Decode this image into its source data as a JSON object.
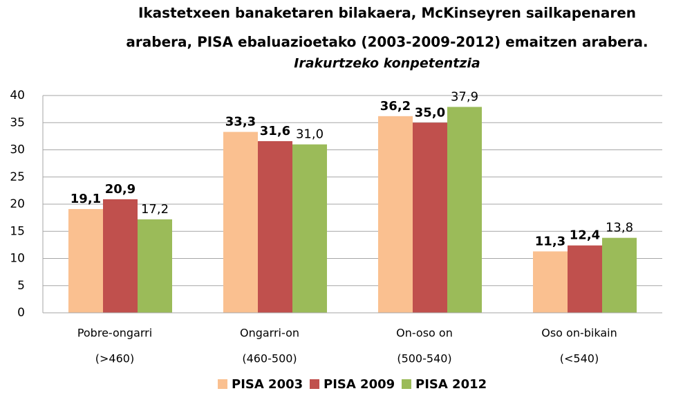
{
  "chart_data": {
    "type": "bar",
    "title": [
      "Ikastetxeen banaketaren bilakaera, McKinseyren sailkapenaren",
      "arabera, PISA ebaluazioetako (2003-2009-2012) emaitzen arabera."
    ],
    "subtitle": "Irakurtzeko konpetentzia",
    "categories": [
      [
        "Pobre-ongarri",
        "(>460)"
      ],
      [
        "Ongarri-on",
        "(460-500)"
      ],
      [
        "On-oso on",
        "(500-540)"
      ],
      [
        "Oso on-bikain",
        "(<540)"
      ]
    ],
    "series": [
      {
        "name": "PISA 2003",
        "color": "#fac090",
        "label_color": "#e46c0a",
        "values": [
          19.1,
          33.3,
          36.2,
          11.3
        ],
        "value_labels": [
          "19,1",
          "33,3",
          "36,2",
          "11,3"
        ]
      },
      {
        "name": "PISA 2009",
        "color": "#c0504d",
        "label_color": "#c00000",
        "values": [
          20.9,
          31.6,
          35.0,
          12.4
        ],
        "value_labels": [
          "20,9",
          "31,6",
          "35,0",
          "12,4"
        ]
      },
      {
        "name": "PISA 2012",
        "color": "#9bbb59",
        "label_color": "#404040",
        "values": [
          17.2,
          31.0,
          37.9,
          13.8
        ],
        "value_labels": [
          "17,2",
          "31,0",
          "37,9",
          "13,8"
        ]
      }
    ],
    "ylim": [
      0,
      40
    ],
    "yticks": [
      0,
      5,
      10,
      15,
      20,
      25,
      30,
      35,
      40
    ],
    "grid": true,
    "legend": "bottom"
  }
}
